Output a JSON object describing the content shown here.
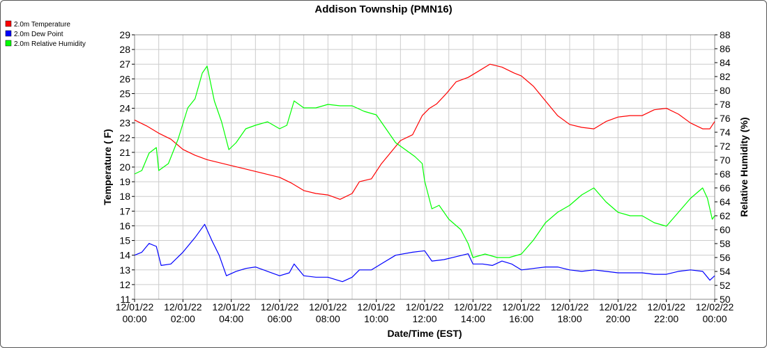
{
  "chart_data": {
    "type": "line",
    "title": "Addison Township (PMN16)",
    "xlabel": "Date/Time (EST)",
    "ylabel_left": "Temperature ( F)",
    "ylabel_right": "Relative Humidity (%)",
    "ylim_left": [
      11,
      29
    ],
    "ylim_right": [
      50,
      88
    ],
    "xlim_hours": [
      0,
      24
    ],
    "grid": true,
    "legend_position": "top-left",
    "x_ticks": [
      {
        "date": "12/01/22",
        "time": "00:00"
      },
      {
        "date": "12/01/22",
        "time": "02:00"
      },
      {
        "date": "12/01/22",
        "time": "04:00"
      },
      {
        "date": "12/01/22",
        "time": "06:00"
      },
      {
        "date": "12/01/22",
        "time": "08:00"
      },
      {
        "date": "12/01/22",
        "time": "10:00"
      },
      {
        "date": "12/01/22",
        "time": "12:00"
      },
      {
        "date": "12/01/22",
        "time": "14:00"
      },
      {
        "date": "12/01/22",
        "time": "16:00"
      },
      {
        "date": "12/01/22",
        "time": "18:00"
      },
      {
        "date": "12/01/22",
        "time": "20:00"
      },
      {
        "date": "12/01/22",
        "time": "22:00"
      },
      {
        "date": "12/02/22",
        "time": "00:00"
      }
    ],
    "y_ticks_left": [
      "11",
      "12",
      "13",
      "14",
      "15",
      "16",
      "17",
      "18",
      "19",
      "20",
      "21",
      "22",
      "23",
      "24",
      "25",
      "26",
      "27",
      "28",
      "29"
    ],
    "y_ticks_right": [
      "50",
      "52",
      "54",
      "56",
      "58",
      "60",
      "62",
      "64",
      "66",
      "68",
      "70",
      "72",
      "74",
      "76",
      "78",
      "80",
      "82",
      "84",
      "86",
      "88"
    ],
    "series": [
      {
        "name": "2.0m Temperature",
        "color": "#ff0000",
        "axis": "left",
        "points": [
          [
            0,
            23.2
          ],
          [
            0.5,
            22.8
          ],
          [
            1,
            22.3
          ],
          [
            1.5,
            21.9
          ],
          [
            2,
            21.2
          ],
          [
            2.5,
            20.8
          ],
          [
            3,
            20.5
          ],
          [
            3.5,
            20.3
          ],
          [
            4,
            20.1
          ],
          [
            4.5,
            19.9
          ],
          [
            5,
            19.7
          ],
          [
            5.5,
            19.5
          ],
          [
            6,
            19.3
          ],
          [
            6.5,
            18.9
          ],
          [
            7,
            18.4
          ],
          [
            7.5,
            18.2
          ],
          [
            8,
            18.1
          ],
          [
            8.5,
            17.8
          ],
          [
            9,
            18.2
          ],
          [
            9.3,
            19.0
          ],
          [
            9.8,
            19.2
          ],
          [
            10.2,
            20.2
          ],
          [
            10.6,
            21.0
          ],
          [
            11,
            21.8
          ],
          [
            11.5,
            22.2
          ],
          [
            11.9,
            23.5
          ],
          [
            12.2,
            24.0
          ],
          [
            12.5,
            24.3
          ],
          [
            12.9,
            25.0
          ],
          [
            13.3,
            25.8
          ],
          [
            13.8,
            26.1
          ],
          [
            14.2,
            26.5
          ],
          [
            14.7,
            27.0
          ],
          [
            15.2,
            26.8
          ],
          [
            15.7,
            26.4
          ],
          [
            16,
            26.2
          ],
          [
            16.5,
            25.5
          ],
          [
            17,
            24.5
          ],
          [
            17.5,
            23.5
          ],
          [
            18,
            22.9
          ],
          [
            18.5,
            22.7
          ],
          [
            19,
            22.6
          ],
          [
            19.5,
            23.1
          ],
          [
            20,
            23.4
          ],
          [
            20.5,
            23.5
          ],
          [
            21,
            23.5
          ],
          [
            21.5,
            23.9
          ],
          [
            22,
            24.0
          ],
          [
            22.5,
            23.6
          ],
          [
            23,
            23.0
          ],
          [
            23.5,
            22.6
          ],
          [
            23.8,
            22.6
          ],
          [
            24,
            23.1
          ]
        ]
      },
      {
        "name": "2.0m Dew Point",
        "color": "#0000ff",
        "axis": "left",
        "points": [
          [
            0,
            14.0
          ],
          [
            0.3,
            14.2
          ],
          [
            0.6,
            14.8
          ],
          [
            0.9,
            14.6
          ],
          [
            1.1,
            13.3
          ],
          [
            1.5,
            13.4
          ],
          [
            2,
            14.2
          ],
          [
            2.5,
            15.2
          ],
          [
            2.9,
            16.1
          ],
          [
            3.2,
            15.0
          ],
          [
            3.5,
            14.0
          ],
          [
            3.8,
            12.6
          ],
          [
            4.2,
            12.9
          ],
          [
            4.6,
            13.1
          ],
          [
            5,
            13.2
          ],
          [
            5.5,
            12.9
          ],
          [
            6,
            12.6
          ],
          [
            6.4,
            12.8
          ],
          [
            6.6,
            13.4
          ],
          [
            7,
            12.6
          ],
          [
            7.5,
            12.5
          ],
          [
            8,
            12.5
          ],
          [
            8.6,
            12.2
          ],
          [
            9,
            12.5
          ],
          [
            9.3,
            13.0
          ],
          [
            9.8,
            13.0
          ],
          [
            10.2,
            13.4
          ],
          [
            10.8,
            14.0
          ],
          [
            11.5,
            14.2
          ],
          [
            12,
            14.3
          ],
          [
            12.3,
            13.6
          ],
          [
            12.8,
            13.7
          ],
          [
            13.3,
            13.9
          ],
          [
            13.8,
            14.1
          ],
          [
            14,
            13.4
          ],
          [
            14.4,
            13.4
          ],
          [
            14.8,
            13.3
          ],
          [
            15.2,
            13.6
          ],
          [
            15.6,
            13.4
          ],
          [
            16,
            13.0
          ],
          [
            16.5,
            13.1
          ],
          [
            17,
            13.2
          ],
          [
            17.5,
            13.2
          ],
          [
            18,
            13.0
          ],
          [
            18.5,
            12.9
          ],
          [
            19,
            13.0
          ],
          [
            19.5,
            12.9
          ],
          [
            20,
            12.8
          ],
          [
            20.5,
            12.8
          ],
          [
            21,
            12.8
          ],
          [
            21.5,
            12.7
          ],
          [
            22,
            12.7
          ],
          [
            22.5,
            12.9
          ],
          [
            23,
            13.0
          ],
          [
            23.5,
            12.9
          ],
          [
            23.8,
            12.3
          ],
          [
            24,
            12.6
          ]
        ]
      },
      {
        "name": "2.0m Relative Humidity",
        "color": "#00ff00",
        "axis": "right",
        "points": [
          [
            0,
            68.0
          ],
          [
            0.3,
            68.5
          ],
          [
            0.6,
            71.0
          ],
          [
            0.9,
            71.8
          ],
          [
            1.0,
            68.5
          ],
          [
            1.4,
            69.5
          ],
          [
            1.8,
            73.0
          ],
          [
            2.2,
            77.5
          ],
          [
            2.5,
            78.8
          ],
          [
            2.8,
            82.5
          ],
          [
            3.0,
            83.5
          ],
          [
            3.3,
            78.5
          ],
          [
            3.6,
            75.5
          ],
          [
            3.9,
            71.5
          ],
          [
            4.2,
            72.5
          ],
          [
            4.6,
            74.5
          ],
          [
            5,
            75.0
          ],
          [
            5.5,
            75.5
          ],
          [
            6,
            74.5
          ],
          [
            6.3,
            75.0
          ],
          [
            6.6,
            78.5
          ],
          [
            7,
            77.5
          ],
          [
            7.5,
            77.5
          ],
          [
            8,
            78.0
          ],
          [
            8.5,
            77.8
          ],
          [
            9,
            77.8
          ],
          [
            9.5,
            77.0
          ],
          [
            10,
            76.5
          ],
          [
            10.3,
            75.0
          ],
          [
            10.8,
            72.5
          ],
          [
            11.2,
            71.5
          ],
          [
            11.6,
            70.5
          ],
          [
            11.9,
            69.5
          ],
          [
            12,
            67.0
          ],
          [
            12.3,
            63.0
          ],
          [
            12.6,
            63.5
          ],
          [
            13,
            61.5
          ],
          [
            13.5,
            60.0
          ],
          [
            13.8,
            58.0
          ],
          [
            14,
            56.0
          ],
          [
            14.5,
            56.5
          ],
          [
            15,
            56.0
          ],
          [
            15.5,
            56.0
          ],
          [
            16,
            56.5
          ],
          [
            16.5,
            58.5
          ],
          [
            17,
            61.0
          ],
          [
            17.5,
            62.5
          ],
          [
            18,
            63.5
          ],
          [
            18.5,
            65.0
          ],
          [
            19,
            66.0
          ],
          [
            19.5,
            64.0
          ],
          [
            20,
            62.5
          ],
          [
            20.5,
            62.0
          ],
          [
            21,
            62.0
          ],
          [
            21.5,
            61.0
          ],
          [
            22,
            60.5
          ],
          [
            22.5,
            62.5
          ],
          [
            23,
            64.5
          ],
          [
            23.5,
            66.0
          ],
          [
            23.7,
            64.5
          ],
          [
            23.9,
            61.5
          ],
          [
            24,
            62.0
          ]
        ]
      }
    ]
  }
}
